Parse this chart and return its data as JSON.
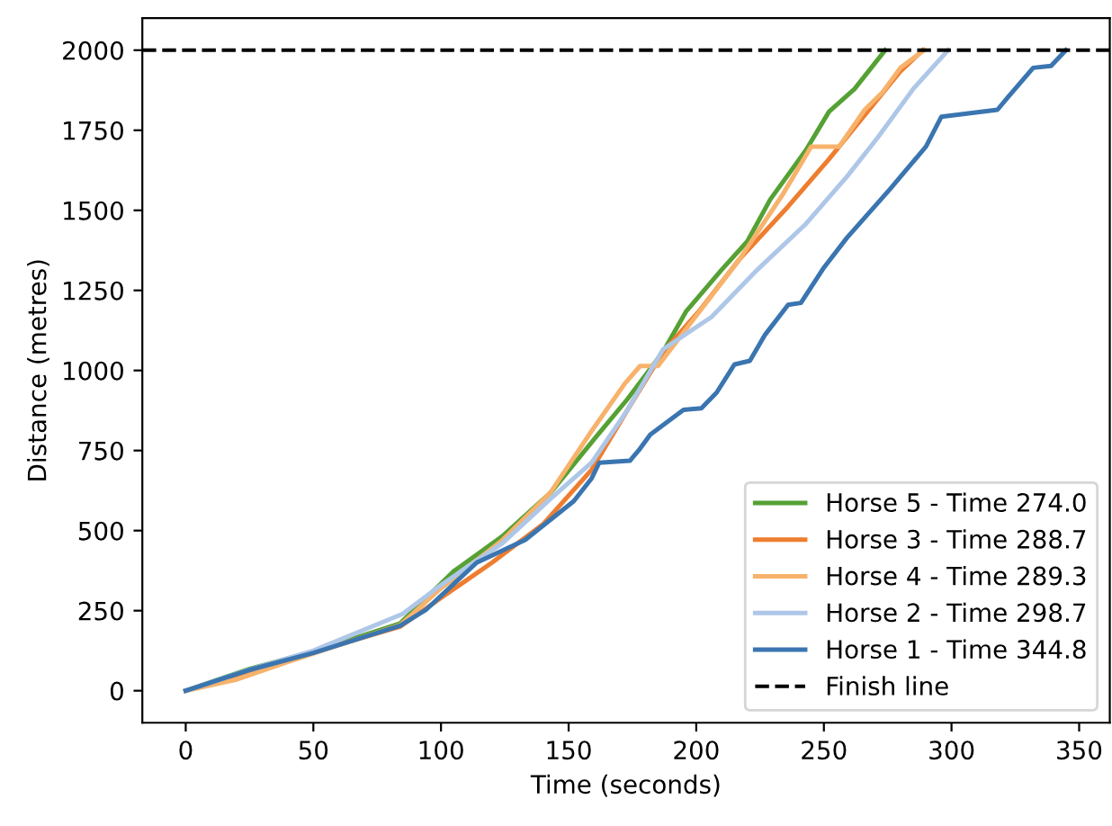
{
  "chart_data": {
    "type": "line",
    "xlabel": "Time (seconds)",
    "ylabel": "Distance (metres)",
    "xlim": [
      -17,
      362
    ],
    "ylim": [
      -100,
      2100
    ],
    "xticks": [
      0,
      50,
      100,
      150,
      200,
      250,
      300,
      350
    ],
    "yticks": [
      0,
      250,
      500,
      750,
      1000,
      1250,
      1500,
      1750,
      2000
    ],
    "grid": false,
    "legend": "bottom right",
    "line_style": "solid",
    "marker": "none",
    "series": [
      {
        "name": "Horse 5 - Time 274.0",
        "color": "#55a134",
        "x": [
          0,
          25,
          50,
          84,
          105,
          124,
          143,
          161,
          173,
          187,
          196,
          210,
          220,
          229,
          243,
          252,
          262,
          274
        ],
        "values": [
          0,
          68,
          122,
          210,
          373,
          482,
          619,
          795,
          910,
          1058,
          1184,
          1315,
          1403,
          1534,
          1688,
          1808,
          1879,
          2000
        ]
      },
      {
        "name": "Horse 3 - Time 288.7",
        "color": "#ee7d2f",
        "x": [
          0,
          25,
          50,
          84,
          100,
          120,
          140,
          159,
          173,
          187,
          201,
          217,
          236,
          252,
          266,
          280,
          288.7
        ],
        "values": [
          0,
          62,
          120,
          200,
          290,
          400,
          520,
          690,
          876,
          1058,
          1184,
          1348,
          1512,
          1660,
          1797,
          1934,
          2000
        ]
      },
      {
        "name": "Horse 4 - Time 289.3",
        "color": "#f7b26b",
        "x": [
          0,
          20,
          40,
          84,
          100,
          124,
          143,
          159,
          172,
          178,
          185,
          196,
          217,
          234,
          245,
          256,
          266,
          273,
          280,
          289.3
        ],
        "values": [
          0,
          35,
          90,
          205,
          320,
          470,
          620,
          811,
          959,
          1014,
          1014,
          1129,
          1348,
          1551,
          1699,
          1699,
          1814,
          1869,
          1945,
          2000
        ]
      },
      {
        "name": "Horse 2 - Time 298.7",
        "color": "#aec7e8",
        "x": [
          0,
          25,
          50,
          85,
          100,
          124,
          143,
          159,
          173,
          187,
          206,
          224,
          243,
          259,
          271,
          285,
          298.7
        ],
        "values": [
          0,
          66,
          125,
          240,
          330,
          460,
          600,
          712,
          876,
          1066,
          1167,
          1315,
          1458,
          1605,
          1726,
          1879,
          2000
        ]
      },
      {
        "name": "Horse 1 - Time 344.8",
        "color": "#3a75b0",
        "x": [
          0,
          25,
          50,
          84,
          94,
          114,
          133,
          152,
          159,
          162,
          174,
          178,
          182,
          195,
          202,
          208,
          215,
          221,
          227,
          236,
          241,
          250,
          259,
          276,
          290,
          296,
          318,
          322,
          332,
          339,
          344.8
        ],
        "values": [
          0,
          65,
          118,
          203,
          252,
          400,
          471,
          592,
          663,
          712,
          718,
          756,
          800,
          877,
          882,
          931,
          1019,
          1030,
          1112,
          1205,
          1211,
          1321,
          1414,
          1567,
          1699,
          1792,
          1814,
          1852,
          1945,
          1951,
          2000
        ]
      }
    ],
    "ref_lines": [
      {
        "axis": "y",
        "value": 2000,
        "label": "Finish line",
        "color": "#000000",
        "line_style": "dashed"
      }
    ]
  }
}
